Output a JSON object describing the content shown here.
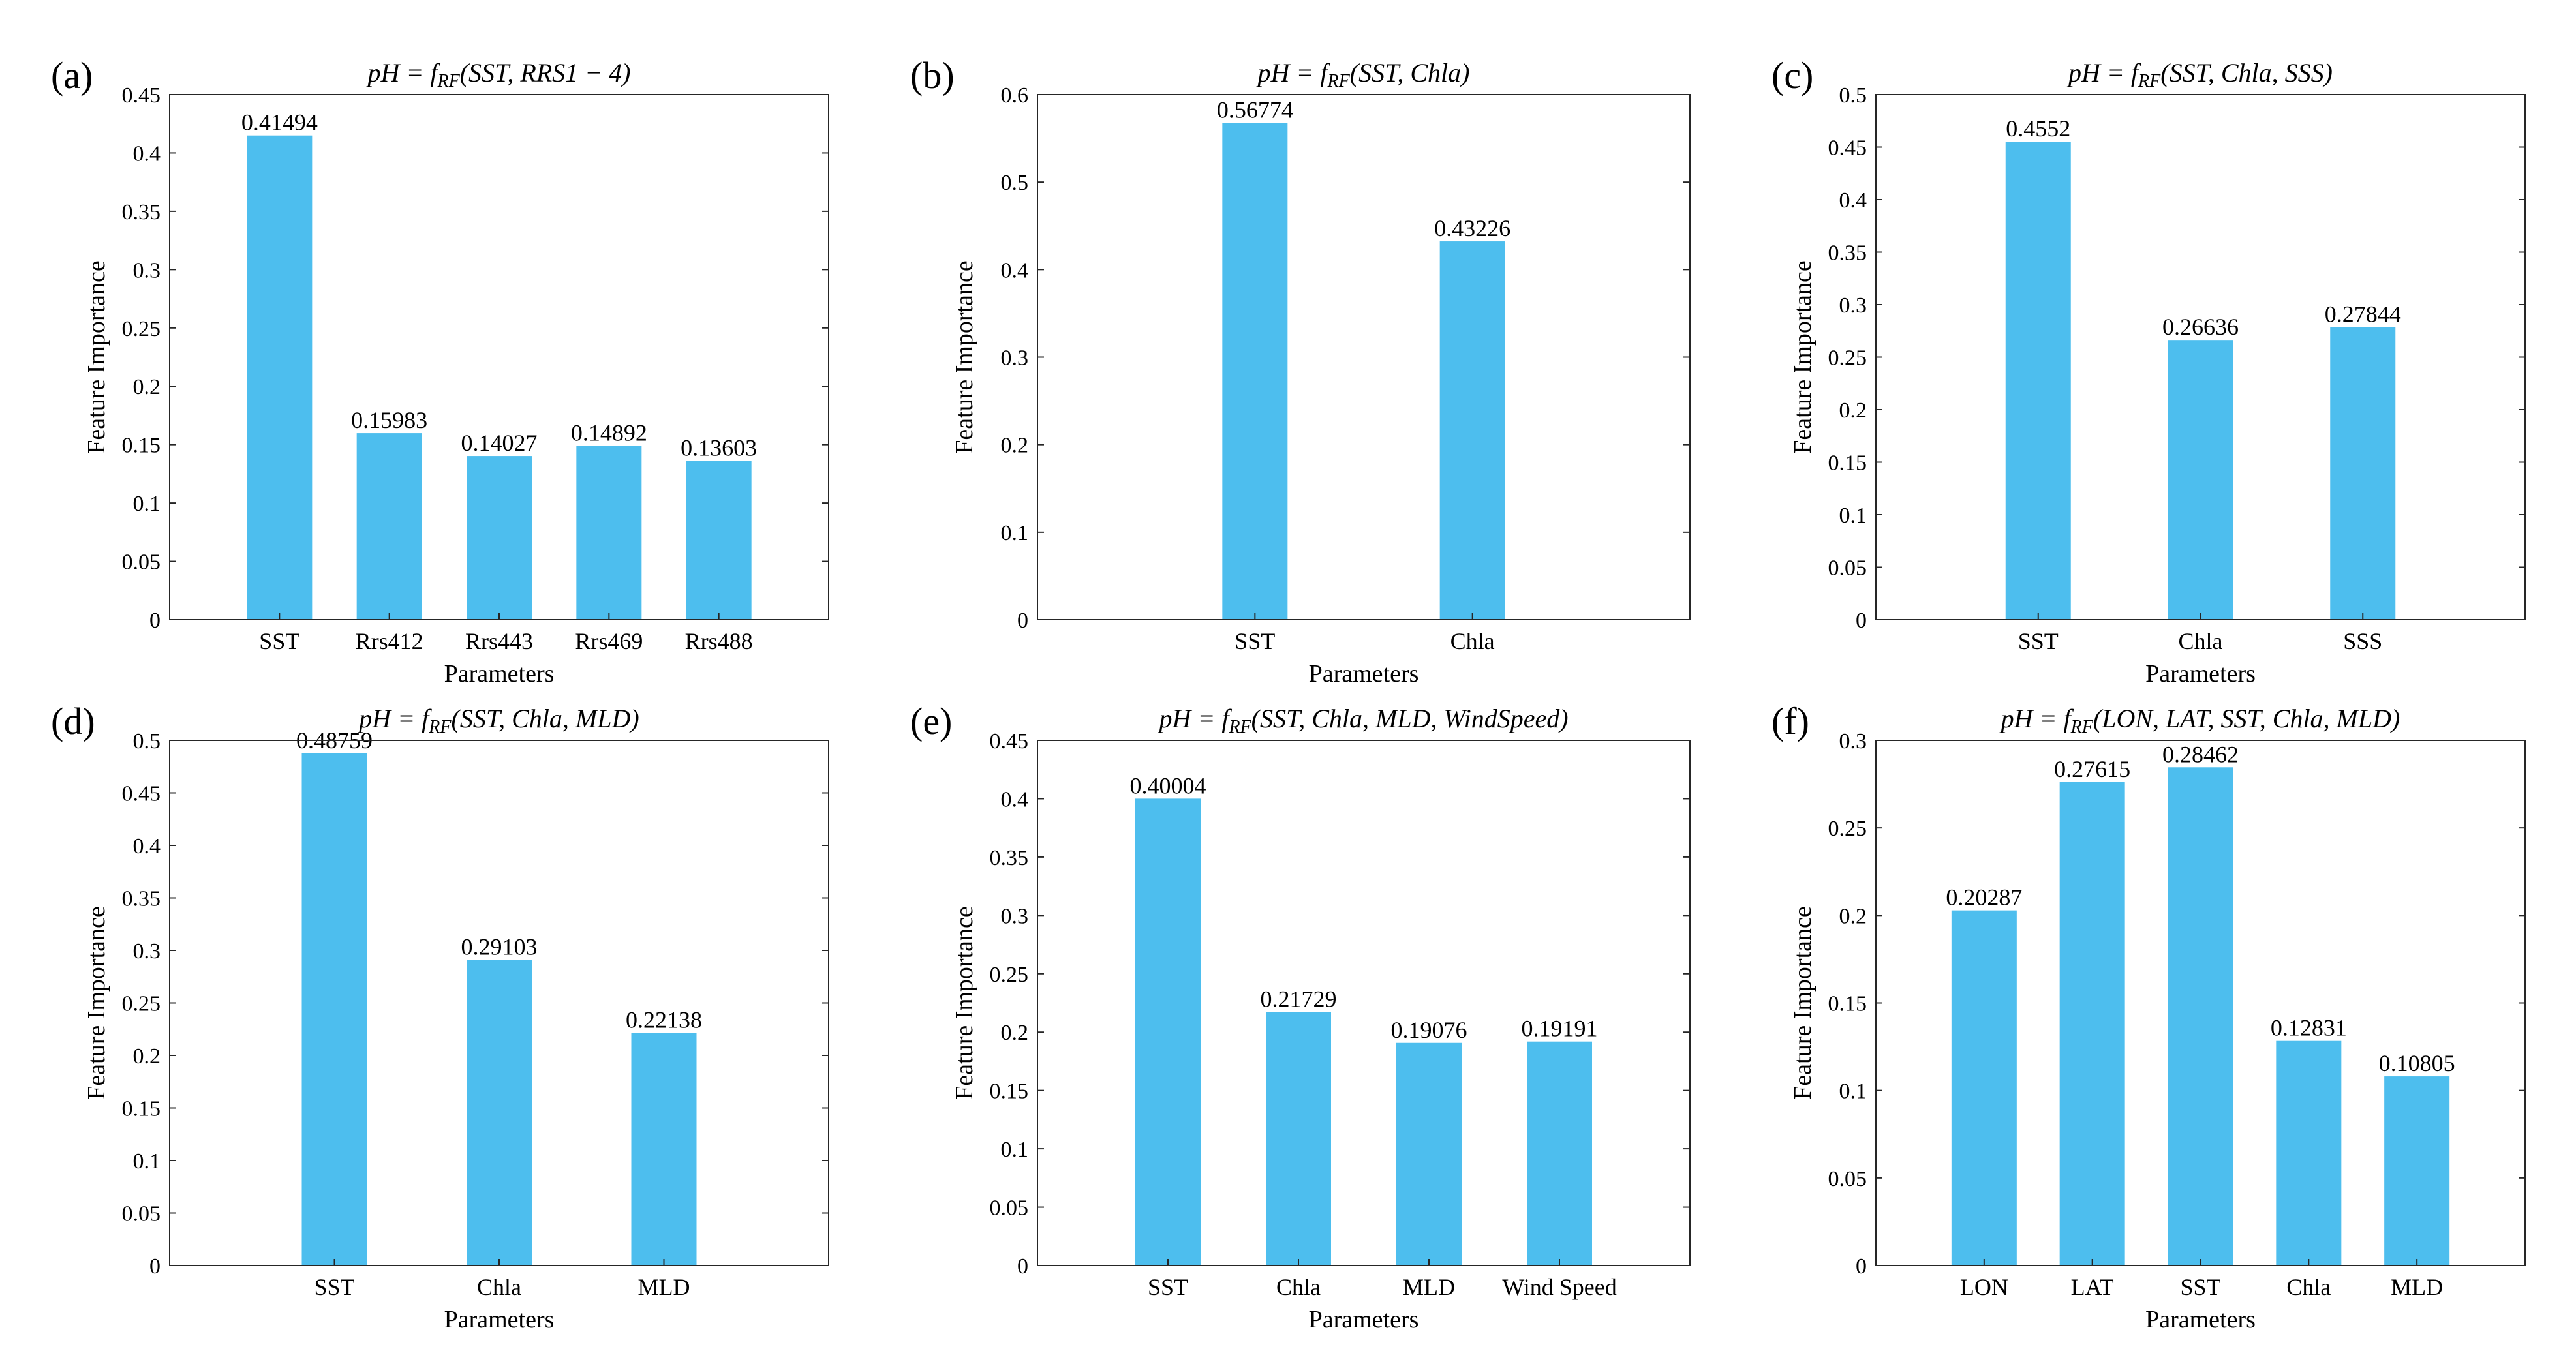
{
  "chart_data": [
    {
      "type": "bar",
      "panel_label": "(a)",
      "title_lhs": "pH",
      "title_fn": "f",
      "title_sub": "RF",
      "title_args": "(SST, RRS1 − 4)",
      "xlabel": "Parameters",
      "ylabel": "Feature Importance",
      "ylim": [
        0,
        0.45
      ],
      "yticks": [
        "0",
        "0.05",
        "0.1",
        "0.15",
        "0.2",
        "0.25",
        "0.3",
        "0.35",
        "0.4",
        "0.45"
      ],
      "categories": [
        "SST",
        "Rrs412",
        "Rrs443",
        "Rrs469",
        "Rrs488"
      ],
      "values": [
        0.41494,
        0.15983,
        0.14027,
        0.14892,
        0.13603
      ],
      "data_labels": [
        "0.41494",
        "0.15983",
        "0.14027",
        "0.14892",
        "0.13603"
      ],
      "bar_color": "#4DBEEE"
    },
    {
      "type": "bar",
      "panel_label": "(b)",
      "title_lhs": "pH",
      "title_fn": "f",
      "title_sub": "RF",
      "title_args": "(SST, Chla)",
      "xlabel": "Parameters",
      "ylabel": "Feature Importance",
      "ylim": [
        0,
        0.6
      ],
      "yticks": [
        "0",
        "0.1",
        "0.2",
        "0.3",
        "0.4",
        "0.5",
        "0.6"
      ],
      "categories": [
        "SST",
        "Chla"
      ],
      "values": [
        0.56774,
        0.43226
      ],
      "data_labels": [
        "0.56774",
        "0.43226"
      ],
      "bar_color": "#4DBEEE"
    },
    {
      "type": "bar",
      "panel_label": "(c)",
      "title_lhs": "pH",
      "title_fn": "f",
      "title_sub": "RF",
      "title_args": "(SST, Chla, SSS)",
      "xlabel": "Parameters",
      "ylabel": "Feature Importance",
      "ylim": [
        0,
        0.5
      ],
      "yticks": [
        "0",
        "0.05",
        "0.1",
        "0.15",
        "0.2",
        "0.25",
        "0.3",
        "0.35",
        "0.4",
        "0.45",
        "0.5"
      ],
      "categories": [
        "SST",
        "Chla",
        "SSS"
      ],
      "values": [
        0.4552,
        0.26636,
        0.27844
      ],
      "data_labels": [
        "0.4552",
        "0.26636",
        "0.27844"
      ],
      "bar_color": "#4DBEEE"
    },
    {
      "type": "bar",
      "panel_label": "(d)",
      "title_lhs": "pH",
      "title_fn": "f",
      "title_sub": "RF",
      "title_args": "(SST, Chla, MLD)",
      "xlabel": "Parameters",
      "ylabel": "Feature Importance",
      "ylim": [
        0,
        0.5
      ],
      "yticks": [
        "0",
        "0.05",
        "0.1",
        "0.15",
        "0.2",
        "0.25",
        "0.3",
        "0.35",
        "0.4",
        "0.45",
        "0.5"
      ],
      "categories": [
        "SST",
        "Chla",
        "MLD"
      ],
      "values": [
        0.48759,
        0.29103,
        0.22138
      ],
      "data_labels": [
        "0.48759",
        "0.29103",
        "0.22138"
      ],
      "bar_color": "#4DBEEE"
    },
    {
      "type": "bar",
      "panel_label": "(e)",
      "title_lhs": "pH",
      "title_fn": "f",
      "title_sub": "RF",
      "title_args": "(SST, Chla, MLD, WindSpeed)",
      "xlabel": "Parameters",
      "ylabel": "Feature Importance",
      "ylim": [
        0,
        0.45
      ],
      "yticks": [
        "0",
        "0.05",
        "0.1",
        "0.15",
        "0.2",
        "0.25",
        "0.3",
        "0.35",
        "0.4",
        "0.45"
      ],
      "categories": [
        "SST",
        "Chla",
        "MLD",
        "Wind Speed"
      ],
      "values": [
        0.40004,
        0.21729,
        0.19076,
        0.19191
      ],
      "data_labels": [
        "0.40004",
        "0.21729",
        "0.19076",
        "0.19191"
      ],
      "bar_color": "#4DBEEE"
    },
    {
      "type": "bar",
      "panel_label": "(f)",
      "title_lhs": "pH",
      "title_fn": "f",
      "title_sub": "RF",
      "title_args": "(LON, LAT, SST, Chla, MLD)",
      "xlabel": "Parameters",
      "ylabel": "Feature Importance",
      "ylim": [
        0,
        0.3
      ],
      "yticks": [
        "0",
        "0.05",
        "0.1",
        "0.15",
        "0.2",
        "0.25",
        "0.3"
      ],
      "categories": [
        "LON",
        "LAT",
        "SST",
        "Chla",
        "MLD"
      ],
      "values": [
        0.20287,
        0.27615,
        0.28462,
        0.12831,
        0.10805
      ],
      "data_labels": [
        "0.20287",
        "0.27615",
        "0.28462",
        "0.12831",
        "0.10805"
      ],
      "bar_color": "#4DBEEE"
    }
  ]
}
